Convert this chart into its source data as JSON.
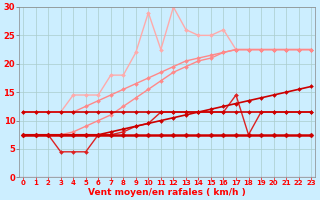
{
  "xlabel": "Vent moyen/en rafales ( km/h )",
  "bg_color": "#cceeff",
  "grid_color": "#aacccc",
  "x_values": [
    0,
    1,
    2,
    3,
    4,
    5,
    6,
    7,
    8,
    9,
    10,
    11,
    12,
    13,
    14,
    15,
    16,
    17,
    18,
    19,
    20,
    21,
    22,
    23
  ],
  "lines": [
    {
      "y": [
        7.5,
        7.5,
        7.5,
        7.5,
        7.5,
        7.5,
        7.5,
        7.5,
        7.5,
        7.5,
        7.5,
        7.5,
        7.5,
        7.5,
        7.5,
        7.5,
        7.5,
        7.5,
        7.5,
        7.5,
        7.5,
        7.5,
        7.5,
        7.5
      ],
      "color": "#cc0000",
      "lw": 1.8,
      "ms": 2.5,
      "zorder": 5
    },
    {
      "y": [
        7.5,
        7.5,
        7.5,
        7.5,
        7.5,
        7.5,
        7.5,
        8.0,
        8.5,
        9.0,
        9.5,
        10.0,
        10.5,
        11.0,
        11.5,
        12.0,
        12.5,
        13.0,
        13.5,
        14.0,
        14.5,
        15.0,
        15.5,
        16.0
      ],
      "color": "#cc0000",
      "lw": 1.2,
      "ms": 2.0,
      "zorder": 4
    },
    {
      "y": [
        11.5,
        11.5,
        11.5,
        11.5,
        11.5,
        11.5,
        11.5,
        11.5,
        11.5,
        11.5,
        11.5,
        11.5,
        11.5,
        11.5,
        11.5,
        11.5,
        11.5,
        11.5,
        11.5,
        11.5,
        11.5,
        11.5,
        11.5,
        11.5
      ],
      "color": "#cc0000",
      "lw": 1.2,
      "ms": 2.0,
      "zorder": 4
    },
    {
      "y": [
        7.5,
        7.5,
        7.5,
        4.5,
        4.5,
        4.5,
        7.5,
        7.5,
        8.0,
        9.0,
        9.5,
        11.5,
        11.5,
        11.5,
        11.5,
        11.5,
        11.5,
        14.5,
        7.5,
        11.5,
        11.5,
        11.5,
        11.5,
        11.5
      ],
      "color": "#dd2222",
      "lw": 1.0,
      "ms": 2.0,
      "zorder": 3
    },
    {
      "y": [
        7.5,
        7.5,
        7.5,
        7.5,
        8.0,
        9.0,
        10.0,
        11.0,
        12.5,
        14.0,
        15.5,
        17.0,
        18.5,
        19.5,
        20.5,
        21.0,
        22.0,
        22.5,
        22.5,
        22.5,
        22.5,
        22.5,
        22.5,
        22.5
      ],
      "color": "#ff8888",
      "lw": 1.0,
      "ms": 2.0,
      "zorder": 3
    },
    {
      "y": [
        11.5,
        11.5,
        11.5,
        11.5,
        11.5,
        12.5,
        13.5,
        14.5,
        15.5,
        16.5,
        17.5,
        18.5,
        19.5,
        20.5,
        21.0,
        21.5,
        22.0,
        22.5,
        22.5,
        22.5,
        22.5,
        22.5,
        22.5,
        22.5
      ],
      "color": "#ff8888",
      "lw": 1.0,
      "ms": 2.0,
      "zorder": 3
    },
    {
      "y": [
        11.5,
        11.5,
        11.5,
        11.5,
        14.5,
        14.5,
        14.5,
        18.0,
        18.0,
        22.0,
        29.0,
        22.5,
        30.0,
        26.0,
        25.0,
        25.0,
        26.0,
        22.5,
        22.5,
        22.5,
        22.5,
        22.5,
        22.5,
        22.5
      ],
      "color": "#ffaaaa",
      "lw": 1.0,
      "ms": 2.0,
      "zorder": 2
    }
  ],
  "ylim": [
    0,
    30
  ],
  "yticks": [
    0,
    5,
    10,
    15,
    20,
    25,
    30
  ],
  "xlim": [
    -0.3,
    23.3
  ],
  "tick_fontsize": 5,
  "label_fontsize": 6.5
}
